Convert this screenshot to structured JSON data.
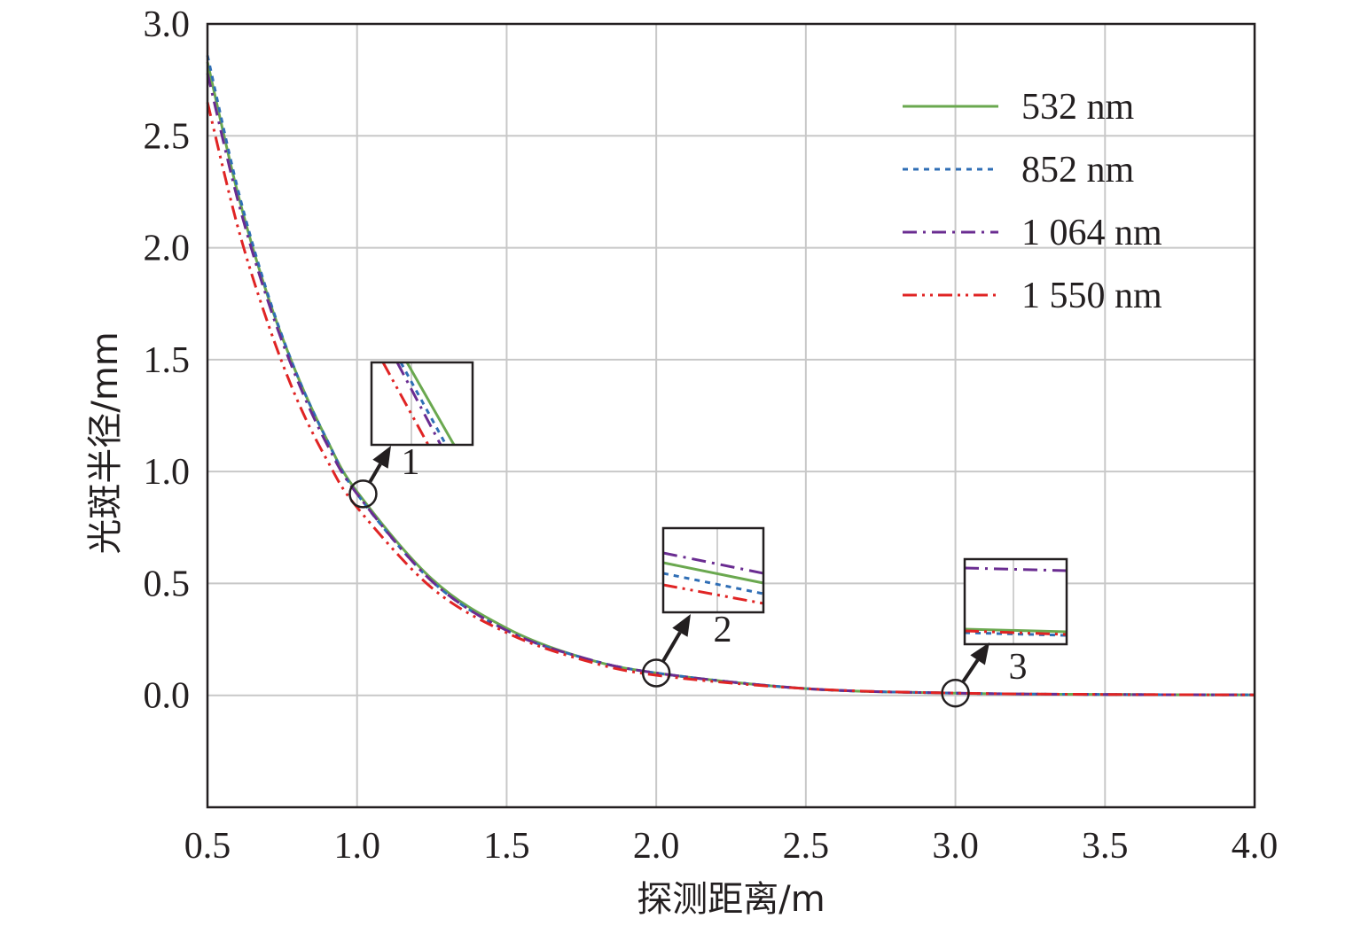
{
  "chart_data": {
    "type": "line",
    "xlabel": "探测距离/m",
    "ylabel": "光斑半径/mm",
    "xlim": [
      0.5,
      4.0
    ],
    "ylim": [
      -0.5,
      3.0
    ],
    "xticks": [
      "0.5",
      "1.0",
      "1.5",
      "2.0",
      "2.5",
      "3.0",
      "3.5",
      "4.0"
    ],
    "yticks": [
      "0.0",
      "0.5",
      "1.0",
      "1.5",
      "2.0",
      "2.5",
      "3.0"
    ],
    "grid": true,
    "legend_position": "top-right",
    "x": [
      0.5,
      0.6,
      0.7,
      0.8,
      0.9,
      1.0,
      1.25,
      1.5,
      1.75,
      2.0,
      2.5,
      3.0,
      3.5,
      4.0
    ],
    "series": [
      {
        "name": "532 nm",
        "color": "#6aa84f",
        "dash": "solid",
        "values": [
          2.83,
          2.25,
          1.79,
          1.43,
          1.14,
          0.91,
          0.52,
          0.3,
          0.17,
          0.1,
          0.03,
          0.01,
          0.004,
          0.002
        ]
      },
      {
        "name": "852 nm",
        "color": "#2f6eb5",
        "dash": "dot",
        "values": [
          2.86,
          2.27,
          1.8,
          1.43,
          1.14,
          0.9,
          0.51,
          0.29,
          0.17,
          0.1,
          0.03,
          0.01,
          0.004,
          0.002
        ]
      },
      {
        "name": "1 064 nm",
        "color": "#6a2c91",
        "dash": "dashdot",
        "values": [
          2.78,
          2.22,
          1.77,
          1.41,
          1.12,
          0.9,
          0.51,
          0.29,
          0.17,
          0.1,
          0.03,
          0.01,
          0.004,
          0.002
        ]
      },
      {
        "name": "1 550 nm",
        "color": "#e02424",
        "dash": "dashdotdot",
        "values": [
          2.65,
          2.1,
          1.67,
          1.32,
          1.05,
          0.84,
          0.48,
          0.28,
          0.16,
          0.09,
          0.03,
          0.01,
          0.004,
          0.002
        ]
      }
    ],
    "annotations": [
      {
        "label": "1",
        "x": 1.02,
        "y": 0.9
      },
      {
        "label": "2",
        "x": 2.0,
        "y": 0.1
      },
      {
        "label": "3",
        "x": 3.0,
        "y": 0.01
      }
    ]
  }
}
